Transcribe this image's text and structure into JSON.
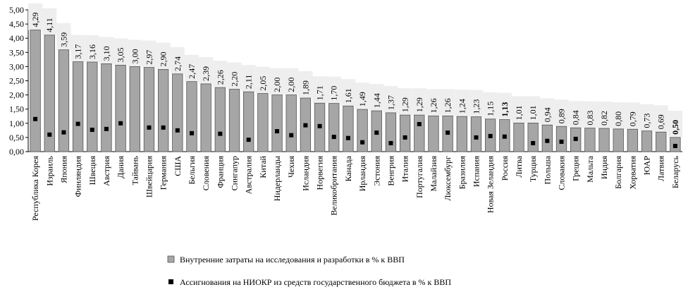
{
  "chart_data": {
    "type": "bar",
    "title": "",
    "xlabel": "",
    "ylabel": "",
    "ylim": [
      0,
      5
    ],
    "y_ticks": [
      "0,00",
      "0,50",
      "1,00",
      "1,50",
      "2,00",
      "2,50",
      "3,00",
      "3,50",
      "4,00",
      "4,50",
      "5,00"
    ],
    "grid": false,
    "legend_position": "bottom",
    "colors": {
      "bar": "#a6a6a6",
      "bar_stroke": "#555555",
      "marker": "#000000",
      "label_bg": "#eeeeee"
    },
    "categories": [
      "Республика Корея",
      "Израиль",
      "Япония",
      "Финляндия",
      "Швеция",
      "Австрия",
      "Дания",
      "Тайвань",
      "Швейцария",
      "Германия",
      "США",
      "Бельгия",
      "Словения",
      "Франция",
      "Сингапур",
      "Австралия",
      "Китай",
      "Нидерланды",
      "Чехия",
      "Исландия",
      "Норвегия",
      "Великобритания",
      "Канада",
      "Ирландия",
      "Эстония",
      "Венгрия",
      "Италия",
      "Португалия",
      "Малайзия",
      "Люксембург",
      "Бразилия",
      "Испания",
      "Новая Зеландия",
      "Россия",
      "Литва",
      "Турция",
      "Польша",
      "Словакия",
      "Греция",
      "Мальта",
      "Индия",
      "Болгария",
      "Хорватия",
      "ЮАР",
      "Латвия",
      "Беларусь"
    ],
    "series": [
      {
        "name": "Внутренние затраты на исследования и разработки в % к ВВП",
        "kind": "bar",
        "values": [
          4.29,
          4.11,
          3.59,
          3.17,
          3.16,
          3.1,
          3.05,
          3.0,
          2.97,
          2.9,
          2.74,
          2.47,
          2.39,
          2.26,
          2.2,
          2.11,
          2.05,
          2.0,
          2.0,
          1.89,
          1.71,
          1.7,
          1.61,
          1.49,
          1.44,
          1.37,
          1.29,
          1.29,
          1.26,
          1.26,
          1.24,
          1.23,
          1.15,
          1.13,
          1.01,
          1.01,
          0.94,
          0.89,
          0.84,
          0.83,
          0.82,
          0.8,
          0.79,
          0.73,
          0.69,
          0.5
        ],
        "labels": [
          "4,29",
          "4,11",
          "3,59",
          "3,17",
          "3,16",
          "3,10",
          "3,05",
          "3,00",
          "2,97",
          "2,90",
          "2,74",
          "2,47",
          "2,39",
          "2,26",
          "2,20",
          "2,11",
          "2,05",
          "2,00",
          "2,00",
          "1,89",
          "1,71",
          "1,70",
          "1,61",
          "1,49",
          "1,44",
          "1,37",
          "1,29",
          "1,29",
          "1,26",
          "1,26",
          "1,24",
          "1,23",
          "1,15",
          "1,13",
          "1,01",
          "1,01",
          "0,94",
          "0,89",
          "0,84",
          "0,83",
          "0,82",
          "0,80",
          "0,79",
          "0,73",
          "0,69",
          "0,50"
        ],
        "bold_labels": [
          "Россия",
          "Беларусь"
        ]
      },
      {
        "name": "Ассигнования на НИОКР из средств государственного бюджета в % к ВВП",
        "kind": "marker",
        "values": [
          1.15,
          0.6,
          0.68,
          0.98,
          0.77,
          0.8,
          1.0,
          null,
          0.85,
          0.85,
          0.75,
          0.65,
          null,
          0.63,
          null,
          0.42,
          null,
          0.72,
          0.58,
          0.93,
          0.9,
          0.52,
          0.48,
          0.33,
          0.67,
          0.3,
          0.5,
          0.97,
          null,
          0.67,
          null,
          0.5,
          0.55,
          0.53,
          null,
          0.3,
          0.38,
          0.35,
          0.45,
          null,
          null,
          null,
          null,
          null,
          null,
          0.2
        ]
      }
    ]
  }
}
